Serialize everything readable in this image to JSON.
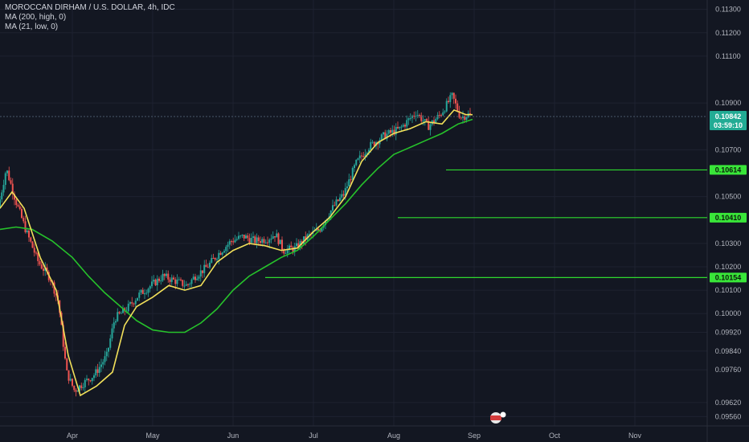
{
  "legend": {
    "symbol": "MOROCCAN DIRHAM / U.S. DOLLAR, 4h, IDC",
    "ma1": "MA (200, high, 0)",
    "ma2": "MA (21, low, 0)"
  },
  "colors": {
    "background": "#131722",
    "candle_up": "#26a69a",
    "candle_down": "#ef5350",
    "ma200": "#26c22b",
    "ma21": "#f2e05a",
    "level_line": "#2ed92e",
    "level_tag": "#39e639",
    "price_tag": "#22ab94",
    "last_price_line": "#4a5a6a"
  },
  "chart_data": {
    "type": "line",
    "title": "MOROCCAN DIRHAM / U.S. DOLLAR, 4h, IDC",
    "timeframe": "4h",
    "ylim": [
      0.0952,
      0.1134
    ],
    "y_ticks": [
      "0.11300",
      "0.11200",
      "0.11100",
      "0.10900",
      "0.10700",
      "0.10500",
      "0.10300",
      "0.10200",
      "0.10100",
      "0.10000",
      "0.09920",
      "0.09840",
      "0.09760",
      "0.09620",
      "0.09560"
    ],
    "y_tick_values": [
      0.113,
      0.112,
      0.111,
      0.109,
      0.107,
      0.105,
      0.103,
      0.102,
      0.101,
      0.1,
      0.0992,
      0.0984,
      0.0976,
      0.0962,
      0.0956
    ],
    "x_ticks": [
      "Apr",
      "May",
      "Jun",
      "Jul",
      "Aug",
      "Sep",
      "Oct",
      "Nov"
    ],
    "x_tick_months": [
      3,
      4,
      5,
      6,
      7,
      8,
      9,
      10
    ],
    "xlim_months": [
      2.1,
      10.9
    ],
    "price_series": {
      "name": "Price",
      "points": [
        [
          2.1,
          0.1045
        ],
        [
          2.2,
          0.1062
        ],
        [
          2.32,
          0.1048
        ],
        [
          2.45,
          0.1035
        ],
        [
          2.6,
          0.1022
        ],
        [
          2.75,
          0.1015
        ],
        [
          2.85,
          0.1005
        ],
        [
          2.95,
          0.0975
        ],
        [
          3.05,
          0.0967
        ],
        [
          3.15,
          0.097
        ],
        [
          3.3,
          0.0974
        ],
        [
          3.45,
          0.0982
        ],
        [
          3.55,
          0.0998
        ],
        [
          3.7,
          0.1002
        ],
        [
          3.85,
          0.1008
        ],
        [
          4.0,
          0.1012
        ],
        [
          4.15,
          0.1016
        ],
        [
          4.3,
          0.1014
        ],
        [
          4.45,
          0.1012
        ],
        [
          4.55,
          0.1016
        ],
        [
          4.7,
          0.102
        ],
        [
          4.85,
          0.1026
        ],
        [
          5.0,
          0.1031
        ],
        [
          5.15,
          0.1033
        ],
        [
          5.3,
          0.1031
        ],
        [
          5.45,
          0.1032
        ],
        [
          5.55,
          0.1034
        ],
        [
          5.65,
          0.1027
        ],
        [
          5.8,
          0.1028
        ],
        [
          5.95,
          0.1033
        ],
        [
          6.1,
          0.1036
        ],
        [
          6.2,
          0.1042
        ],
        [
          6.3,
          0.1047
        ],
        [
          6.4,
          0.1051
        ],
        [
          6.55,
          0.1064
        ],
        [
          6.7,
          0.1071
        ],
        [
          6.9,
          0.1076
        ],
        [
          7.1,
          0.1079
        ],
        [
          7.3,
          0.1086
        ],
        [
          7.45,
          0.108
        ],
        [
          7.6,
          0.1085
        ],
        [
          7.75,
          0.1093
        ],
        [
          7.85,
          0.1084
        ],
        [
          7.95,
          0.1085
        ]
      ]
    },
    "series": [
      {
        "name": "MA (200, high, 0)",
        "points": [
          [
            2.1,
            0.1036
          ],
          [
            2.3,
            0.1037
          ],
          [
            2.5,
            0.1036
          ],
          [
            2.75,
            0.1031
          ],
          [
            3.0,
            0.1024
          ],
          [
            3.2,
            0.1016
          ],
          [
            3.4,
            0.1009
          ],
          [
            3.6,
            0.1003
          ],
          [
            3.8,
            0.0997
          ],
          [
            4.0,
            0.0993
          ],
          [
            4.2,
            0.0992
          ],
          [
            4.4,
            0.0992
          ],
          [
            4.6,
            0.0996
          ],
          [
            4.8,
            0.1002
          ],
          [
            5.0,
            0.101
          ],
          [
            5.2,
            0.1016
          ],
          [
            5.4,
            0.102
          ],
          [
            5.6,
            0.1024
          ],
          [
            5.8,
            0.1027
          ],
          [
            6.0,
            0.1033
          ],
          [
            6.2,
            0.104
          ],
          [
            6.4,
            0.1047
          ],
          [
            6.6,
            0.1055
          ],
          [
            6.8,
            0.1062
          ],
          [
            7.0,
            0.1068
          ],
          [
            7.2,
            0.1071
          ],
          [
            7.4,
            0.1074
          ],
          [
            7.6,
            0.1077
          ],
          [
            7.8,
            0.1081
          ],
          [
            7.98,
            0.1083
          ]
        ]
      },
      {
        "name": "MA (21, low, 0)",
        "points": [
          [
            2.1,
            0.1045
          ],
          [
            2.25,
            0.1052
          ],
          [
            2.4,
            0.1045
          ],
          [
            2.6,
            0.1024
          ],
          [
            2.8,
            0.101
          ],
          [
            2.95,
            0.0982
          ],
          [
            3.1,
            0.0965
          ],
          [
            3.3,
            0.0969
          ],
          [
            3.5,
            0.0975
          ],
          [
            3.65,
            0.0995
          ],
          [
            3.8,
            0.1003
          ],
          [
            4.0,
            0.1007
          ],
          [
            4.2,
            0.1012
          ],
          [
            4.4,
            0.101
          ],
          [
            4.6,
            0.1012
          ],
          [
            4.8,
            0.1022
          ],
          [
            5.0,
            0.1027
          ],
          [
            5.2,
            0.103
          ],
          [
            5.4,
            0.1029
          ],
          [
            5.6,
            0.1027
          ],
          [
            5.8,
            0.1028
          ],
          [
            6.0,
            0.1035
          ],
          [
            6.2,
            0.1041
          ],
          [
            6.4,
            0.105
          ],
          [
            6.6,
            0.1065
          ],
          [
            6.8,
            0.1073
          ],
          [
            7.0,
            0.1077
          ],
          [
            7.2,
            0.1079
          ],
          [
            7.4,
            0.1082
          ],
          [
            7.6,
            0.1081
          ],
          [
            7.75,
            0.1087
          ],
          [
            7.9,
            0.1085
          ],
          [
            7.98,
            0.1085
          ]
        ]
      }
    ],
    "levels": [
      {
        "label": "0.10614",
        "value": 0.10614,
        "start_month": 7.65
      },
      {
        "label": "0.10410",
        "value": 0.1041,
        "start_month": 7.05
      },
      {
        "label": "0.10154",
        "value": 0.10154,
        "start_month": 5.4
      }
    ],
    "last_price": {
      "label": "0.10842",
      "value": 0.10842,
      "countdown": "03:59:10"
    }
  }
}
